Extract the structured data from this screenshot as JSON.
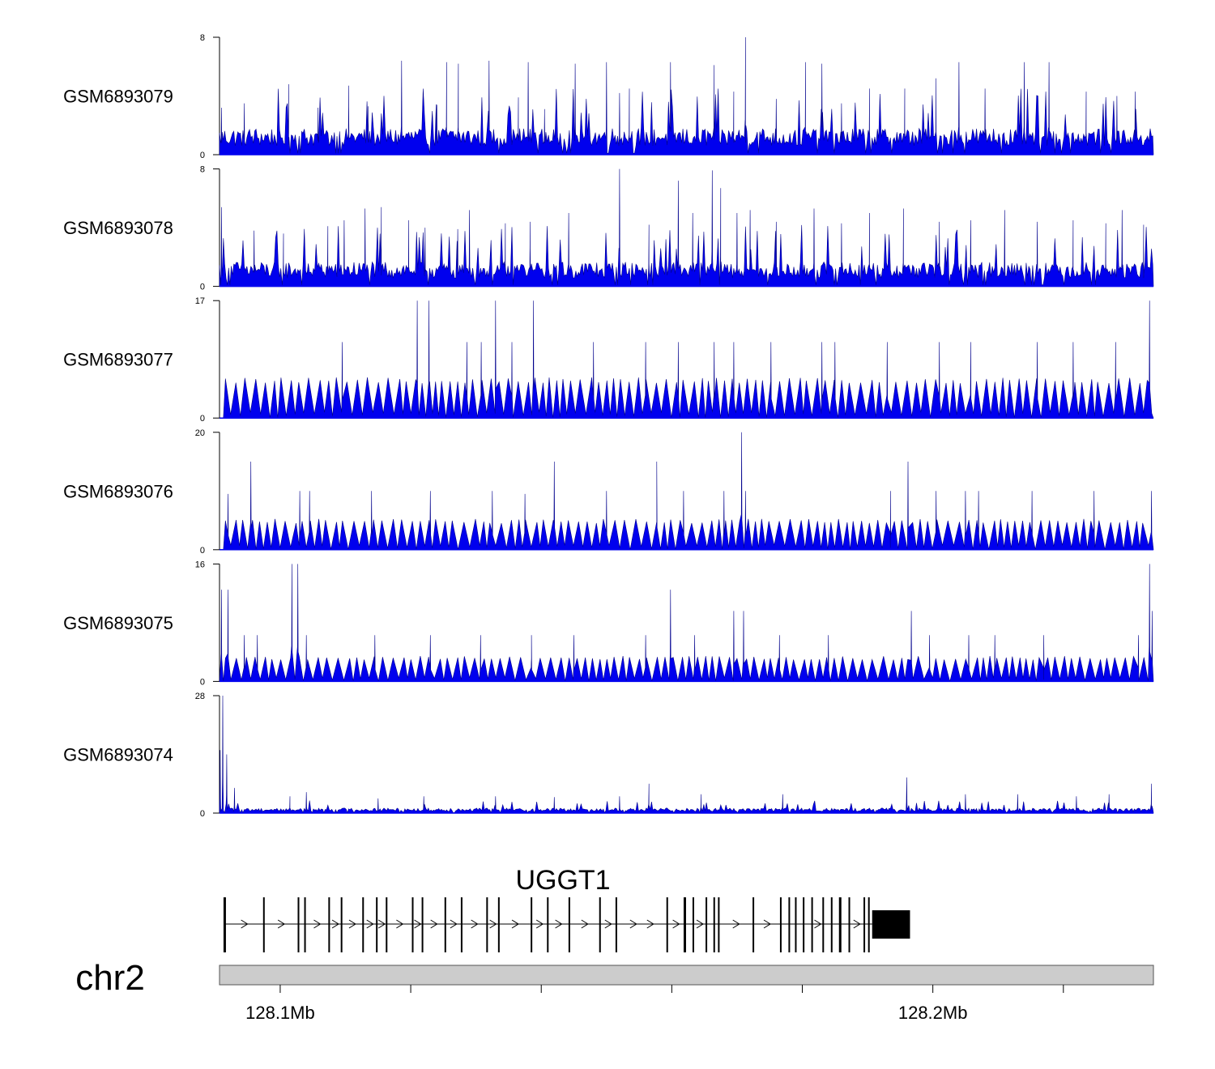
{
  "chart_data": {
    "type": "area",
    "title": "",
    "chromosome": "chr2",
    "region_mb": [
      128.0907,
      128.2338
    ],
    "gene": {
      "name": "UGGT1",
      "strand": "+",
      "exon_positions_mb": [
        128.0915,
        128.0975,
        128.1028,
        128.1038,
        128.1075,
        128.1094,
        128.1127,
        128.1148,
        128.1163,
        128.1203,
        128.1218,
        128.1253,
        128.1278,
        128.1317,
        128.1335,
        128.1385,
        128.141,
        128.1443,
        128.149,
        128.1515,
        128.1593,
        128.162,
        128.1633,
        128.1653,
        128.1665,
        128.1672,
        128.1725,
        128.1767,
        128.178,
        128.179,
        128.1802,
        128.1815,
        128.1832,
        128.1845,
        128.1858,
        128.1872,
        128.1895,
        128.1902
      ],
      "utr_3_mb": [
        128.1907,
        128.1965
      ]
    },
    "x_ticks_mb": [
      128.1,
      128.12,
      128.14,
      128.16,
      128.18,
      128.2,
      128.22
    ],
    "x_tick_labels": [
      "128.1Mb",
      "128.2Mb"
    ],
    "x_tick_label_values_mb": [
      128.1,
      128.2
    ],
    "series": [
      {
        "name": "GSM6893079",
        "ylim": [
          0,
          8
        ],
        "baseline": 1.5,
        "base_step_mb": 0.0002,
        "peaks": [
          [
            128.091,
            3.2
          ],
          [
            128.0945,
            3.5
          ],
          [
            128.1013,
            4.8
          ],
          [
            128.1058,
            3.2
          ],
          [
            128.1105,
            4.7
          ],
          [
            128.1135,
            3.3
          ],
          [
            128.1186,
            6.4
          ],
          [
            128.124,
            3.4
          ],
          [
            128.1255,
            6.3
          ],
          [
            128.1273,
            6.2
          ],
          [
            128.132,
            6.4
          ],
          [
            128.1365,
            3.9
          ],
          [
            128.138,
            6.3
          ],
          [
            128.1405,
            3.1
          ],
          [
            128.1452,
            6.2
          ],
          [
            128.15,
            6.3
          ],
          [
            128.152,
            4.2
          ],
          [
            128.1535,
            4.5
          ],
          [
            128.1598,
            6.3
          ],
          [
            128.1665,
            6.1
          ],
          [
            128.1695,
            4.3
          ],
          [
            128.1713,
            8.0
          ],
          [
            128.176,
            3.8
          ],
          [
            128.1805,
            6.3
          ],
          [
            128.183,
            6.2
          ],
          [
            128.186,
            3.5
          ],
          [
            128.1903,
            4.5
          ],
          [
            128.1957,
            4.5
          ],
          [
            128.2005,
            5.2
          ],
          [
            128.204,
            6.3
          ],
          [
            128.208,
            4.5
          ],
          [
            128.214,
            6.3
          ],
          [
            128.2178,
            6.3
          ],
          [
            128.2235,
            4.3
          ],
          [
            128.2282,
            4.0
          ],
          [
            128.231,
            4.3
          ]
        ]
      },
      {
        "name": "GSM6893078",
        "ylim": [
          0,
          8
        ],
        "baseline": 1.4,
        "base_step_mb": 0.0002,
        "peaks": [
          [
            128.091,
            5.4
          ],
          [
            128.096,
            3.8
          ],
          [
            128.1005,
            3.6
          ],
          [
            128.1073,
            4.1
          ],
          [
            128.1098,
            4.5
          ],
          [
            128.113,
            5.3
          ],
          [
            128.1155,
            5.4
          ],
          [
            128.1197,
            4.5
          ],
          [
            128.1222,
            4.0
          ],
          [
            128.1272,
            3.9
          ],
          [
            128.129,
            5.2
          ],
          [
            128.1345,
            4.3
          ],
          [
            128.1383,
            4.4
          ],
          [
            128.1442,
            5.0
          ],
          [
            128.152,
            8.0
          ],
          [
            128.1565,
            4.2
          ],
          [
            128.161,
            7.2
          ],
          [
            128.1632,
            5.0
          ],
          [
            128.1662,
            7.9
          ],
          [
            128.1675,
            6.7
          ],
          [
            128.17,
            5.0
          ],
          [
            128.172,
            5.2
          ],
          [
            128.176,
            4.4
          ],
          [
            128.1818,
            5.3
          ],
          [
            128.186,
            4.3
          ],
          [
            128.1903,
            5.0
          ],
          [
            128.1955,
            5.3
          ],
          [
            128.201,
            4.4
          ],
          [
            128.2058,
            4.5
          ],
          [
            128.211,
            5.2
          ],
          [
            128.216,
            4.4
          ],
          [
            128.2215,
            4.5
          ],
          [
            128.2265,
            4.3
          ],
          [
            128.229,
            5.2
          ],
          [
            128.2323,
            4.2
          ]
        ]
      },
      {
        "name": "GSM6893077",
        "ylim": [
          0,
          17
        ],
        "baseline": 0,
        "base_step_mb": 0.0015,
        "base_height": 5.6,
        "peaks": [
          [
            128.1095,
            11.0
          ],
          [
            128.121,
            17.0
          ],
          [
            128.1228,
            17.0
          ],
          [
            128.1286,
            11.0
          ],
          [
            128.1308,
            11.0
          ],
          [
            128.133,
            17.0
          ],
          [
            128.1355,
            11.0
          ],
          [
            128.1388,
            17.0
          ],
          [
            128.148,
            11.0
          ],
          [
            128.156,
            11.0
          ],
          [
            128.161,
            11.0
          ],
          [
            128.1665,
            11.0
          ],
          [
            128.1695,
            11.0
          ],
          [
            128.1752,
            11.0
          ],
          [
            128.183,
            11.0
          ],
          [
            128.185,
            11.0
          ],
          [
            128.193,
            11.0
          ],
          [
            128.201,
            11.0
          ],
          [
            128.2058,
            11.0
          ],
          [
            128.216,
            11.0
          ],
          [
            128.2215,
            11.0
          ],
          [
            128.228,
            11.0
          ],
          [
            128.2332,
            17.0
          ]
        ]
      },
      {
        "name": "GSM6893076",
        "ylim": [
          0,
          20
        ],
        "baseline": 0,
        "base_step_mb": 0.0015,
        "base_height": 5.0,
        "peaks": [
          [
            128.092,
            9.5
          ],
          [
            128.0955,
            15.0
          ],
          [
            128.103,
            10.0
          ],
          [
            128.1045,
            10.0
          ],
          [
            128.114,
            10.0
          ],
          [
            128.123,
            10.0
          ],
          [
            128.1325,
            10.0
          ],
          [
            128.1375,
            9.5
          ],
          [
            128.142,
            15.0
          ],
          [
            128.15,
            10.0
          ],
          [
            128.1577,
            15.0
          ],
          [
            128.1618,
            10.0
          ],
          [
            128.168,
            10.0
          ],
          [
            128.1707,
            20.0
          ],
          [
            128.1713,
            10.0
          ],
          [
            128.1935,
            10.0
          ],
          [
            128.1962,
            15.0
          ],
          [
            128.2005,
            10.0
          ],
          [
            128.205,
            10.0
          ],
          [
            128.207,
            10.0
          ],
          [
            128.2152,
            10.0
          ],
          [
            128.2247,
            10.0
          ],
          [
            128.2335,
            10.0
          ]
        ]
      },
      {
        "name": "GSM6893075",
        "ylim": [
          0,
          16
        ],
        "baseline": 0,
        "base_step_mb": 0.0015,
        "base_height": 3.3,
        "peaks": [
          [
            128.091,
            12.5
          ],
          [
            128.092,
            12.5
          ],
          [
            128.0945,
            6.3
          ],
          [
            128.0965,
            6.3
          ],
          [
            128.1018,
            16.0
          ],
          [
            128.1027,
            16.0
          ],
          [
            128.104,
            6.3
          ],
          [
            128.1145,
            6.3
          ],
          [
            128.123,
            6.3
          ],
          [
            128.1307,
            6.3
          ],
          [
            128.1385,
            6.3
          ],
          [
            128.145,
            6.3
          ],
          [
            128.156,
            6.3
          ],
          [
            128.1598,
            12.5
          ],
          [
            128.1635,
            6.3
          ],
          [
            128.1695,
            9.6
          ],
          [
            128.171,
            9.6
          ],
          [
            128.1765,
            6.3
          ],
          [
            128.184,
            6.3
          ],
          [
            128.1967,
            9.6
          ],
          [
            128.1995,
            6.3
          ],
          [
            128.2055,
            6.3
          ],
          [
            128.2095,
            6.3
          ],
          [
            128.217,
            6.3
          ],
          [
            128.2315,
            6.3
          ],
          [
            128.2332,
            16.0
          ],
          [
            128.2336,
            9.6
          ]
        ]
      },
      {
        "name": "GSM6893074",
        "ylim": [
          0,
          28
        ],
        "baseline": 1.0,
        "base_step_mb": 0.0002,
        "peaks": [
          [
            128.0908,
            15.0
          ],
          [
            128.0912,
            28.0
          ],
          [
            128.0918,
            14.0
          ],
          [
            128.093,
            6.0
          ],
          [
            128.1015,
            4.0
          ],
          [
            128.104,
            5.0
          ],
          [
            128.115,
            3.5
          ],
          [
            128.122,
            4.0
          ],
          [
            128.133,
            4.0
          ],
          [
            128.142,
            3.8
          ],
          [
            128.152,
            4.0
          ],
          [
            128.1565,
            7.0
          ],
          [
            128.1645,
            4.5
          ],
          [
            128.177,
            4.5
          ],
          [
            128.196,
            8.5
          ],
          [
            128.205,
            4.5
          ],
          [
            128.213,
            4.5
          ],
          [
            128.222,
            4.0
          ],
          [
            128.227,
            4.5
          ],
          [
            128.2335,
            7.0
          ]
        ]
      }
    ]
  }
}
